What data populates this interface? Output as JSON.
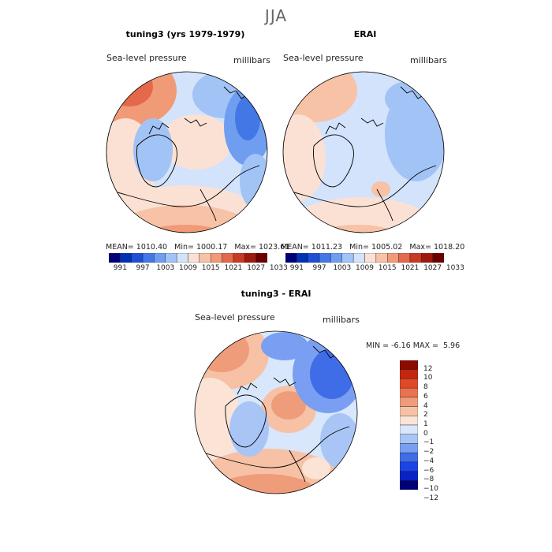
{
  "figure": {
    "season": "JJA"
  },
  "colors": {
    "abs_levels": [
      "#00007a",
      "#0033b3",
      "#1f4fd6",
      "#4477e6",
      "#6f9ef0",
      "#a2c3f5",
      "#d2e3fb",
      "#fbe1d4",
      "#f7c2a6",
      "#f19a78",
      "#e4694a",
      "#c83a22",
      "#9e1a0c",
      "#6b0000"
    ],
    "diff_levels": [
      "#00007a",
      "#0a22c4",
      "#1a44e6",
      "#3f6de8",
      "#7a9ff2",
      "#a9c5f6",
      "#d8e7fc",
      "#fbe3d6",
      "#f6c1a5",
      "#ef9c7b",
      "#ec7150",
      "#e04a26",
      "#c4260e",
      "#8c0a00"
    ],
    "coast": "#000000"
  },
  "panels": {
    "test": {
      "title": "tuning3 (yrs 1979-1979)",
      "variable": "Sea-level pressure",
      "units": "millibars",
      "stats": {
        "mean": "1010.40",
        "min": "1000.17",
        "max": "1023.61"
      }
    },
    "ref": {
      "title": "ERAI",
      "variable": "Sea-level pressure",
      "units": "millibars",
      "stats": {
        "mean": "1011.23",
        "min": "1005.02",
        "max": "1018.20"
      }
    },
    "diff": {
      "title": "tuning3 - ERAI",
      "variable": "Sea-level pressure",
      "units": "millibars",
      "stats": {
        "min": "-6.16",
        "max": "5.96"
      }
    }
  },
  "labels": {
    "mean_prefix": "MEAN=",
    "min_prefix": "Min=",
    "max_prefix": "Max=",
    "diff_min_prefix": "MIN =",
    "diff_max_prefix": "MAX ="
  },
  "chart_data": [
    {
      "type": "heatmap",
      "title": "tuning3 (yrs 1979-1979)",
      "projection": "north-polar-stereographic",
      "variable": "Sea-level pressure",
      "units": "millibars",
      "mean": 1010.4,
      "min": 1000.17,
      "max": 1023.61,
      "contour_levels": [
        991,
        994,
        997,
        1000,
        1003,
        1006,
        1009,
        1012,
        1015,
        1018,
        1021,
        1024,
        1027,
        1030,
        1033
      ],
      "colorbar_tick_labels": [
        "991",
        "997",
        "1003",
        "1009",
        "1015",
        "1021",
        "1027",
        "1033"
      ]
    },
    {
      "type": "heatmap",
      "title": "ERAI",
      "projection": "north-polar-stereographic",
      "variable": "Sea-level pressure",
      "units": "millibars",
      "mean": 1011.23,
      "min": 1005.02,
      "max": 1018.2,
      "contour_levels": [
        991,
        994,
        997,
        1000,
        1003,
        1006,
        1009,
        1012,
        1015,
        1018,
        1021,
        1024,
        1027,
        1030,
        1033
      ],
      "colorbar_tick_labels": [
        "991",
        "997",
        "1003",
        "1009",
        "1015",
        "1021",
        "1027",
        "1033"
      ]
    },
    {
      "type": "heatmap",
      "title": "tuning3 - ERAI",
      "projection": "north-polar-stereographic",
      "variable": "Sea-level pressure",
      "units": "millibars",
      "min": -6.16,
      "max": 5.96,
      "contour_levels": [
        -12,
        -10,
        -8,
        -6,
        -4,
        -2,
        -1,
        0,
        1,
        2,
        4,
        6,
        8,
        10,
        12
      ],
      "colorbar_tick_labels": [
        "12",
        "10",
        "8",
        "6",
        "4",
        "2",
        "1",
        "0",
        "−1",
        "−2",
        "−4",
        "−6",
        "−8",
        "−10",
        "−12"
      ]
    }
  ]
}
